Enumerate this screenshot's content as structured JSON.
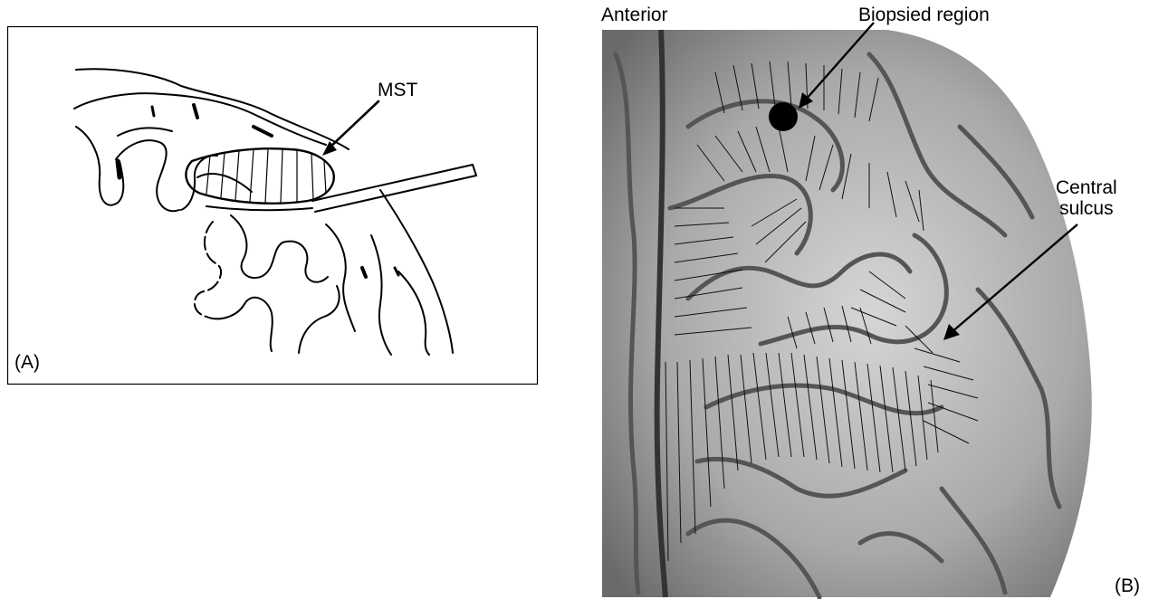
{
  "panel_a": {
    "label": "(A)",
    "callout": "MST"
  },
  "panel_b": {
    "label": "(B)",
    "orientation_label": "Anterior",
    "biopsy_label": "Biopsied region",
    "central_sulcus_line1": "Central",
    "central_sulcus_line2": "sulcus"
  }
}
